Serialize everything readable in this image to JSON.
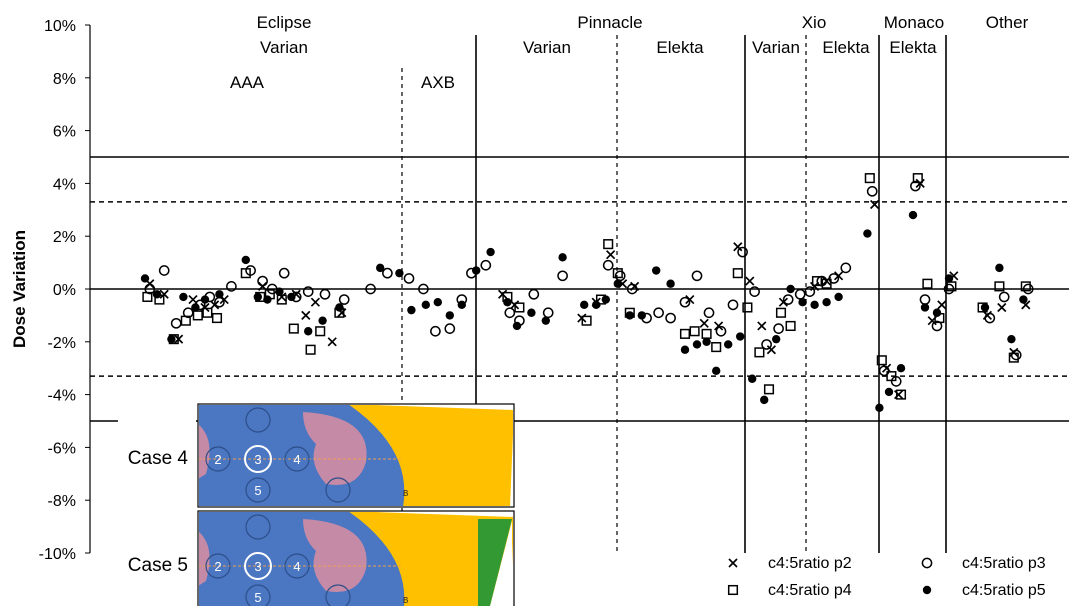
{
  "chart_data": {
    "type": "scatter",
    "ylabel": "Dose Variation",
    "ylim": [
      -0.1,
      0.1
    ],
    "y_ticks": [
      "10%",
      "8%",
      "6%",
      "4%",
      "2%",
      "0%",
      "-2%",
      "-4%",
      "-6%",
      "-8%",
      "-10%"
    ],
    "y_tick_values": [
      0.1,
      0.08,
      0.06,
      0.04,
      0.02,
      0.0,
      -0.02,
      -0.04,
      -0.06,
      -0.08,
      -0.1
    ],
    "tolerance_lines": {
      "solid": [
        0.05,
        -0.05
      ],
      "dashed": [
        0.033,
        -0.033
      ]
    },
    "groups": {
      "top": [
        {
          "key": "eclipse",
          "text": "Eclipse"
        },
        {
          "key": "pinnacle",
          "text": "Pinnacle"
        },
        {
          "key": "xio",
          "text": "Xio"
        },
        {
          "key": "monaco",
          "text": "Monaco"
        },
        {
          "key": "other",
          "text": "Other"
        }
      ],
      "middle": [
        {
          "key": "eclipse-varian",
          "text": "Varian"
        },
        {
          "key": "pinnacle-varian",
          "text": "Varian"
        },
        {
          "key": "pinnacle-elekta",
          "text": "Elekta"
        },
        {
          "key": "xio-varian",
          "text": "Varian"
        },
        {
          "key": "xio-elekta",
          "text": "Elekta"
        },
        {
          "key": "monaco-elekta",
          "text": "Elekta"
        }
      ],
      "bottom": [
        {
          "key": "aaa",
          "text": "AAA"
        },
        {
          "key": "axb",
          "text": "AXB"
        }
      ]
    },
    "legend": [
      {
        "marker": "x",
        "label": "c4:5ratio p2"
      },
      {
        "marker": "o",
        "label": "c4:5ratio p3"
      },
      {
        "marker": "s",
        "label": "c4:5ratio p4"
      },
      {
        "marker": "d",
        "label": "c4:5ratio p5"
      }
    ],
    "series": [
      {
        "name": "c4:5ratio p2",
        "marker": "x",
        "points": [
          [
            0.7,
            0.002
          ],
          [
            1.3,
            -0.002
          ],
          [
            1.9,
            -0.019
          ],
          [
            2.5,
            -0.004
          ],
          [
            3.0,
            -0.007
          ],
          [
            3.4,
            -0.006
          ],
          [
            3.8,
            -0.004
          ],
          [
            5.4,
            0.001
          ],
          [
            6.2,
            -0.003
          ],
          [
            6.8,
            -0.002
          ],
          [
            7.2,
            -0.01
          ],
          [
            7.6,
            -0.005
          ],
          [
            8.3,
            -0.02
          ],
          [
            8.7,
            -0.009
          ],
          [
            15.4,
            -0.002
          ],
          [
            15.9,
            -0.006
          ],
          [
            18.7,
            -0.011
          ],
          [
            19.3,
            -0.005
          ],
          [
            19.9,
            0.013
          ],
          [
            20.4,
            0.002
          ],
          [
            20.9,
            0.001
          ],
          [
            23.2,
            -0.004
          ],
          [
            23.8,
            -0.013
          ],
          [
            24.4,
            -0.014
          ],
          [
            25.2,
            0.016
          ],
          [
            25.7,
            0.003
          ],
          [
            26.2,
            -0.014
          ],
          [
            26.6,
            -0.023
          ],
          [
            27.1,
            -0.005
          ],
          [
            28.4,
            0.001
          ],
          [
            28.9,
            0.003
          ],
          [
            29.4,
            0.005
          ],
          [
            30.9,
            0.032
          ],
          [
            31.4,
            -0.03
          ],
          [
            31.9,
            -0.04
          ],
          [
            32.8,
            0.04
          ],
          [
            33.3,
            -0.012
          ],
          [
            33.7,
            -0.006
          ],
          [
            34.2,
            0.005
          ],
          [
            35.6,
            -0.01
          ],
          [
            36.2,
            -0.007
          ],
          [
            36.7,
            -0.024
          ],
          [
            37.2,
            -0.006
          ]
        ]
      },
      {
        "name": "c4:5ratio p3",
        "marker": "o",
        "points": [
          [
            0.7,
            0.0
          ],
          [
            1.3,
            0.007
          ],
          [
            1.8,
            -0.013
          ],
          [
            2.3,
            -0.009
          ],
          [
            2.8,
            -0.006
          ],
          [
            3.2,
            -0.003
          ],
          [
            3.6,
            -0.005
          ],
          [
            4.1,
            0.001
          ],
          [
            4.9,
            0.007
          ],
          [
            5.4,
            0.003
          ],
          [
            5.8,
            0.0
          ],
          [
            6.3,
            0.006
          ],
          [
            6.8,
            -0.003
          ],
          [
            7.3,
            -0.001
          ],
          [
            8.0,
            -0.002
          ],
          [
            8.8,
            -0.004
          ],
          [
            9.9,
            0.0
          ],
          [
            10.6,
            0.006
          ],
          [
            11.5,
            0.004
          ],
          [
            12.1,
            0.0
          ],
          [
            12.6,
            -0.016
          ],
          [
            13.2,
            -0.015
          ],
          [
            13.7,
            -0.004
          ],
          [
            14.1,
            0.006
          ],
          [
            14.7,
            0.009
          ],
          [
            15.7,
            -0.009
          ],
          [
            16.1,
            -0.012
          ],
          [
            16.7,
            -0.002
          ],
          [
            17.3,
            -0.009
          ],
          [
            17.9,
            0.005
          ],
          [
            19.8,
            0.009
          ],
          [
            20.3,
            0.005
          ],
          [
            20.8,
            0.0
          ],
          [
            21.4,
            -0.011
          ],
          [
            21.9,
            -0.009
          ],
          [
            22.4,
            -0.011
          ],
          [
            23.0,
            -0.005
          ],
          [
            23.5,
            0.005
          ],
          [
            24.0,
            -0.009
          ],
          [
            24.5,
            -0.016
          ],
          [
            25.0,
            -0.006
          ],
          [
            25.4,
            0.014
          ],
          [
            25.9,
            -0.001
          ],
          [
            26.4,
            -0.021
          ],
          [
            26.9,
            -0.015
          ],
          [
            27.3,
            -0.004
          ],
          [
            27.8,
            -0.002
          ],
          [
            28.2,
            -0.001
          ],
          [
            28.7,
            0.003
          ],
          [
            29.2,
            0.004
          ],
          [
            29.7,
            0.008
          ],
          [
            30.8,
            0.037
          ],
          [
            31.3,
            -0.031
          ],
          [
            31.8,
            -0.035
          ],
          [
            32.6,
            0.039
          ],
          [
            33.0,
            -0.004
          ],
          [
            33.5,
            -0.014
          ],
          [
            34.0,
            0.0
          ],
          [
            35.7,
            -0.011
          ],
          [
            36.3,
            -0.003
          ],
          [
            36.8,
            -0.025
          ],
          [
            37.3,
            0.0
          ]
        ]
      },
      {
        "name": "c4:5ratio p4",
        "marker": "s",
        "points": [
          [
            0.6,
            -0.003
          ],
          [
            1.1,
            -0.004
          ],
          [
            1.7,
            -0.019
          ],
          [
            2.2,
            -0.012
          ],
          [
            2.7,
            -0.01
          ],
          [
            3.1,
            -0.009
          ],
          [
            3.5,
            -0.011
          ],
          [
            4.7,
            0.006
          ],
          [
            5.3,
            -0.003
          ],
          [
            5.7,
            -0.002
          ],
          [
            6.2,
            -0.004
          ],
          [
            6.7,
            -0.015
          ],
          [
            7.4,
            -0.023
          ],
          [
            7.8,
            -0.016
          ],
          [
            8.6,
            -0.009
          ],
          [
            15.6,
            -0.003
          ],
          [
            16.1,
            -0.007
          ],
          [
            18.9,
            -0.012
          ],
          [
            19.5,
            -0.004
          ],
          [
            19.8,
            0.017
          ],
          [
            20.2,
            0.006
          ],
          [
            20.7,
            -0.009
          ],
          [
            23.0,
            -0.017
          ],
          [
            23.4,
            -0.016
          ],
          [
            23.9,
            -0.017
          ],
          [
            24.3,
            -0.022
          ],
          [
            25.2,
            0.006
          ],
          [
            25.6,
            -0.007
          ],
          [
            26.1,
            -0.024
          ],
          [
            26.5,
            -0.038
          ],
          [
            27.0,
            -0.009
          ],
          [
            27.4,
            -0.014
          ],
          [
            28.5,
            0.003
          ],
          [
            28.9,
            0.002
          ],
          [
            30.7,
            0.042
          ],
          [
            31.2,
            -0.027
          ],
          [
            31.6,
            -0.033
          ],
          [
            32.0,
            -0.04
          ],
          [
            32.7,
            0.042
          ],
          [
            33.1,
            0.002
          ],
          [
            33.6,
            -0.011
          ],
          [
            34.1,
            0.001
          ],
          [
            35.4,
            -0.007
          ],
          [
            36.1,
            0.001
          ],
          [
            36.7,
            -0.026
          ],
          [
            37.2,
            0.001
          ]
        ]
      },
      {
        "name": "c4:5ratio p5",
        "marker": "d",
        "points": [
          [
            0.5,
            0.004
          ],
          [
            1.0,
            -0.002
          ],
          [
            1.6,
            -0.019
          ],
          [
            2.1,
            -0.003
          ],
          [
            2.6,
            -0.007
          ],
          [
            3.0,
            -0.004
          ],
          [
            3.6,
            -0.002
          ],
          [
            4.7,
            0.011
          ],
          [
            5.2,
            -0.003
          ],
          [
            5.6,
            -0.004
          ],
          [
            6.1,
            -0.001
          ],
          [
            6.6,
            -0.003
          ],
          [
            7.3,
            -0.016
          ],
          [
            7.9,
            -0.012
          ],
          [
            8.6,
            -0.007
          ],
          [
            10.3,
            0.008
          ],
          [
            11.1,
            0.006
          ],
          [
            11.6,
            -0.008
          ],
          [
            12.2,
            -0.006
          ],
          [
            12.7,
            -0.005
          ],
          [
            13.2,
            -0.01
          ],
          [
            13.7,
            -0.006
          ],
          [
            14.3,
            0.007
          ],
          [
            14.9,
            0.014
          ],
          [
            15.6,
            -0.005
          ],
          [
            16.0,
            -0.014
          ],
          [
            16.6,
            -0.009
          ],
          [
            17.2,
            -0.012
          ],
          [
            17.9,
            0.012
          ],
          [
            18.8,
            -0.006
          ],
          [
            19.3,
            -0.006
          ],
          [
            19.7,
            -0.004
          ],
          [
            20.2,
            0.002
          ],
          [
            20.7,
            -0.01
          ],
          [
            21.2,
            -0.01
          ],
          [
            21.8,
            0.007
          ],
          [
            22.4,
            0.002
          ],
          [
            23.0,
            -0.023
          ],
          [
            23.5,
            -0.021
          ],
          [
            23.9,
            -0.02
          ],
          [
            24.3,
            -0.031
          ],
          [
            24.8,
            -0.021
          ],
          [
            25.3,
            -0.018
          ],
          [
            25.8,
            -0.034
          ],
          [
            26.3,
            -0.042
          ],
          [
            26.8,
            -0.019
          ],
          [
            27.4,
            0.0
          ],
          [
            27.9,
            -0.005
          ],
          [
            28.4,
            -0.006
          ],
          [
            28.9,
            -0.005
          ],
          [
            29.4,
            -0.003
          ],
          [
            30.6,
            0.021
          ],
          [
            31.1,
            -0.045
          ],
          [
            31.5,
            -0.039
          ],
          [
            32.0,
            -0.03
          ],
          [
            32.5,
            0.028
          ],
          [
            33.0,
            -0.007
          ],
          [
            33.5,
            -0.009
          ],
          [
            34.0,
            0.004
          ],
          [
            35.5,
            -0.007
          ],
          [
            36.1,
            0.008
          ],
          [
            36.6,
            -0.019
          ],
          [
            37.1,
            -0.004
          ]
        ]
      }
    ]
  },
  "inset": {
    "cases": [
      {
        "label": "Case 4",
        "region_labels": [
          "2",
          "3",
          "4",
          "5"
        ],
        "marker": "B",
        "green_wedge": false
      },
      {
        "label": "Case 5",
        "region_labels": [
          "2",
          "3",
          "4",
          "5"
        ],
        "marker": "B",
        "green_wedge": true
      }
    ],
    "colors": {
      "phantom": "#4a76c2",
      "lung": "#c48aa6",
      "field": "#ffc000",
      "wedge": "#339933",
      "iso_line": "#f0a050"
    }
  }
}
